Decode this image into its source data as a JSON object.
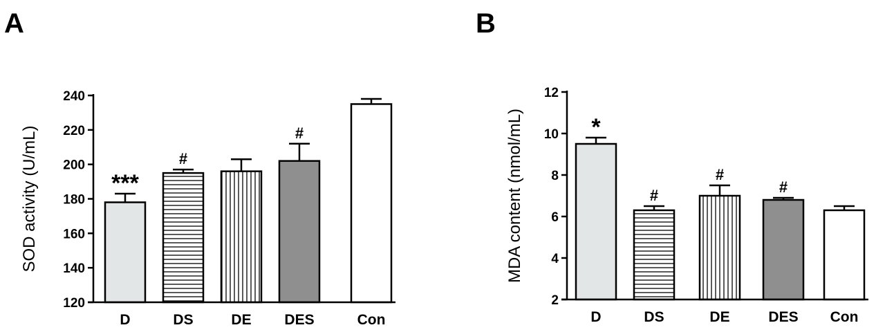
{
  "panels": [
    {
      "letter": "A"
    },
    {
      "letter": "B"
    }
  ],
  "chart_data": [
    {
      "type": "bar",
      "categories": [
        "D",
        "DS",
        "DE",
        "DES",
        "Con"
      ],
      "values": [
        178,
        195,
        196,
        202,
        235
      ],
      "errors": [
        5,
        2,
        7,
        10,
        3
      ],
      "annotations": [
        "***",
        "#",
        "",
        "#",
        ""
      ],
      "ylabel": "SOD activity (U/mL)",
      "ylim": [
        120,
        240
      ],
      "yticks": [
        120,
        140,
        160,
        180,
        200,
        220,
        240
      ],
      "bar_fills": [
        "light-gray",
        "horizontal-stripes",
        "vertical-stripes",
        "dark-gray",
        "white"
      ],
      "colors": {
        "light": "#e3e6e6",
        "dark": "#8f8f8f",
        "white": "#ffffff",
        "stroke": "#000000"
      }
    },
    {
      "type": "bar",
      "categories": [
        "D",
        "DS",
        "DE",
        "DES",
        "Con"
      ],
      "values": [
        9.5,
        6.3,
        7.0,
        6.8,
        6.3
      ],
      "errors": [
        0.3,
        0.2,
        0.5,
        0.1,
        0.2
      ],
      "annotations": [
        "*",
        "#",
        "#",
        "#",
        ""
      ],
      "ylabel": "MDA content (nmol/mL)",
      "ylim": [
        2,
        12
      ],
      "yticks": [
        2,
        4,
        6,
        8,
        10,
        12
      ],
      "bar_fills": [
        "light-gray",
        "horizontal-stripes",
        "vertical-stripes",
        "dark-gray",
        "white"
      ],
      "colors": {
        "light": "#e3e6e6",
        "dark": "#8f8f8f",
        "white": "#ffffff",
        "stroke": "#000000"
      }
    }
  ]
}
